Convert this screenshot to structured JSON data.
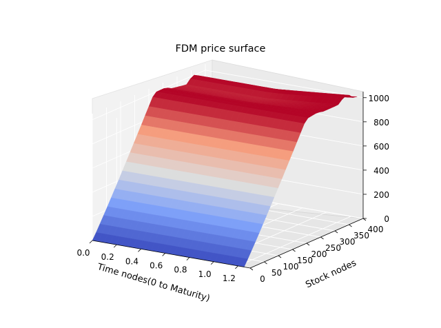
{
  "chart_data": {
    "type": "surface",
    "title": "FDM price surface",
    "xlabel": "Time nodes(0 to Maturity)",
    "ylabel": "Stock nodes",
    "zlabel": "",
    "x_ticks": [
      "0.0",
      "0.2",
      "0.4",
      "0.6",
      "0.8",
      "1.0",
      "1.2"
    ],
    "y_ticks": [
      "0",
      "50",
      "100",
      "150",
      "200",
      "250",
      "300",
      "350",
      "400"
    ],
    "z_ticks": [
      "0",
      "200",
      "400",
      "600",
      "800",
      "1000"
    ],
    "xlim": [
      0,
      1.3
    ],
    "ylim": [
      0,
      400
    ],
    "zlim": [
      0,
      1050
    ],
    "colormap": "coolwarm",
    "grid": true,
    "surface": {
      "description_of_shape": "price rises linearly from ~0 at stock node 0 to ~1000 at stock node ~220 and stays flat; spikes near maturity at high stock nodes",
      "plateau_value": 1000,
      "ramp_end_stock_node": 220,
      "peak_value_near_maturity": 1050
    }
  }
}
